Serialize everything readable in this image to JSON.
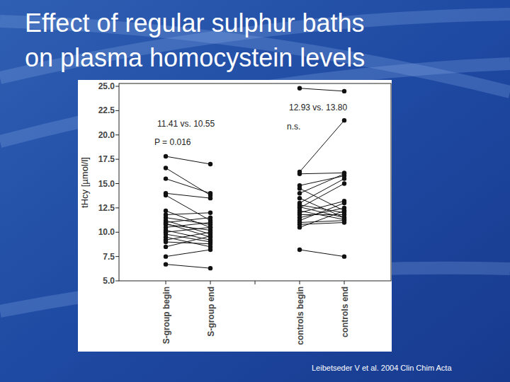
{
  "chart_data": {
    "type": "paired",
    "title": "Effect of regular sulphur baths on plasma homocystein levels",
    "y_label": "tHcy [µmol/l]",
    "source": "Leibetseder V et al. 2004 Clin Chim Acta",
    "categories": [
      "S-group begin",
      "S-group end",
      "controls begin",
      "controls end"
    ],
    "ylim": [
      5,
      25
    ],
    "yticks": [
      {
        "value": 5,
        "label": "5.0"
      },
      {
        "value": 7.5,
        "label": "7.5"
      },
      {
        "value": 10,
        "label": "10.0"
      },
      {
        "value": 12.5,
        "label": "12.5"
      },
      {
        "value": 15,
        "label": "15.0"
      },
      {
        "value": 17.5,
        "label": "17.5"
      },
      {
        "value": 20,
        "label": "20.0"
      },
      {
        "value": 22.5,
        "label": "22.5"
      },
      {
        "value": 25,
        "label": "25.0"
      }
    ],
    "grid": false,
    "marker": "circle",
    "color": "#111111",
    "groups": [
      {
        "annotations": [
          "11.41 vs. 10.55",
          "P = 0.016"
        ],
        "begin": [
          17.8,
          16.6,
          15.5,
          14.0,
          13.8,
          12.2,
          11.8,
          11.5,
          11.2,
          11.0,
          10.9,
          10.8,
          10.5,
          10.2,
          10.0,
          9.8,
          9.5,
          9.2,
          9.0,
          8.5,
          7.5,
          6.7
        ],
        "end": [
          17.0,
          13.8,
          14.0,
          13.5,
          11.2,
          10.5,
          12.0,
          10.8,
          9.8,
          11.5,
          9.5,
          10.2,
          11.0,
          9.2,
          10.5,
          9.0,
          8.5,
          10.0,
          8.8,
          9.6,
          8.2,
          6.3
        ]
      },
      {
        "annotations": [
          "12.93 vs. 13.80",
          "n.s."
        ],
        "begin": [
          24.8,
          16.2,
          16.0,
          14.8,
          14.5,
          14.0,
          13.5,
          13.0,
          12.8,
          12.5,
          12.2,
          12.0,
          11.8,
          11.5,
          11.2,
          11.0,
          10.8,
          10.5,
          8.2,
          12.6
        ],
        "end": [
          24.5,
          21.5,
          16.1,
          15.8,
          12.2,
          16.0,
          11.5,
          15.5,
          12.0,
          15.0,
          11.3,
          13.2,
          11.8,
          12.5,
          13.0,
          11.2,
          11.0,
          12.2,
          7.5,
          11.5
        ]
      }
    ]
  }
}
